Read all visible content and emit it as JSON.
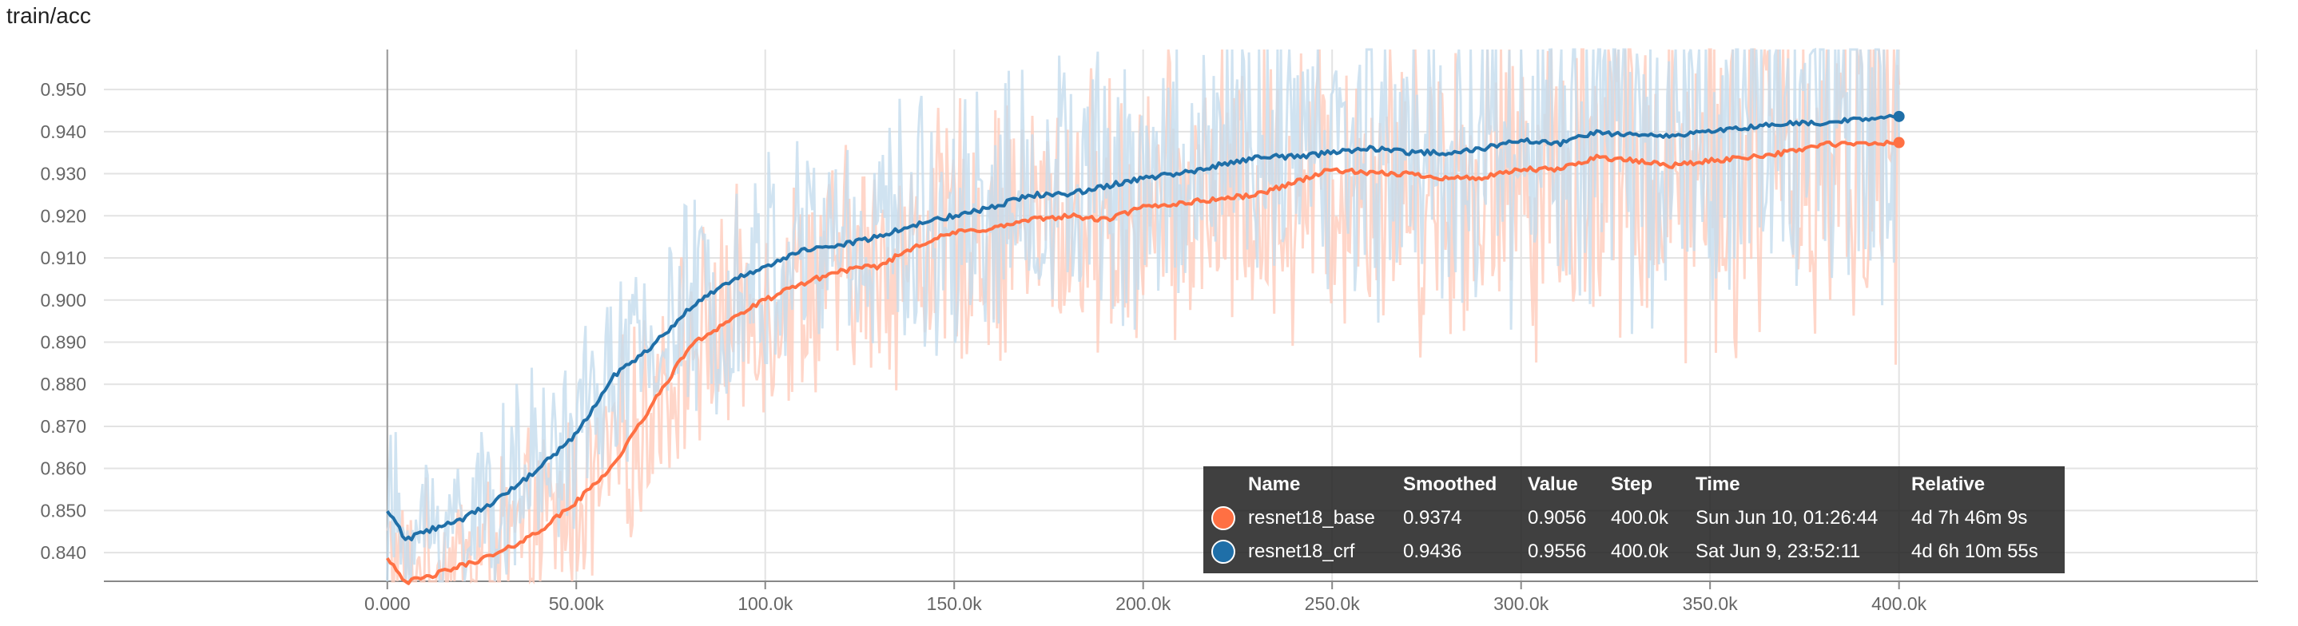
{
  "chart_data": {
    "type": "line",
    "title": "train/acc",
    "xlim": [
      -75000,
      495000
    ],
    "ylim": [
      0.8332,
      0.9595
    ],
    "x_ticks": [
      0,
      50000,
      100000,
      150000,
      200000,
      250000,
      300000,
      350000,
      400000
    ],
    "x_tick_labels": [
      "0.000",
      "50.00k",
      "100.0k",
      "150.0k",
      "200.0k",
      "250.0k",
      "300.0k",
      "350.0k",
      "400.0k"
    ],
    "y_ticks": [
      0.84,
      0.85,
      0.86,
      0.87,
      0.88,
      0.89,
      0.9,
      0.91,
      0.92,
      0.93,
      0.94,
      0.95
    ],
    "y_tick_labels": [
      "0.840",
      "0.850",
      "0.860",
      "0.870",
      "0.880",
      "0.890",
      "0.900",
      "0.910",
      "0.920",
      "0.930",
      "0.940",
      "0.950"
    ],
    "grid": true,
    "legend": "bottom-right",
    "series": [
      {
        "name": "resnet18_base",
        "color": "#ff7043",
        "raw_color": "#ffccbc",
        "smoothed": [
          [
            0,
            0.839
          ],
          [
            5000,
            0.833
          ],
          [
            10000,
            0.834
          ],
          [
            20000,
            0.837
          ],
          [
            30000,
            0.84
          ],
          [
            40000,
            0.845
          ],
          [
            50000,
            0.852
          ],
          [
            60000,
            0.861
          ],
          [
            70000,
            0.875
          ],
          [
            80000,
            0.889
          ],
          [
            90000,
            0.895
          ],
          [
            100000,
            0.9
          ],
          [
            110000,
            0.904
          ],
          [
            120000,
            0.907
          ],
          [
            130000,
            0.908
          ],
          [
            140000,
            0.913
          ],
          [
            150000,
            0.916
          ],
          [
            160000,
            0.917
          ],
          [
            170000,
            0.919
          ],
          [
            180000,
            0.92
          ],
          [
            190000,
            0.919
          ],
          [
            200000,
            0.922
          ],
          [
            210000,
            0.923
          ],
          [
            220000,
            0.924
          ],
          [
            230000,
            0.925
          ],
          [
            240000,
            0.928
          ],
          [
            250000,
            0.931
          ],
          [
            260000,
            0.93
          ],
          [
            270000,
            0.93
          ],
          [
            280000,
            0.929
          ],
          [
            290000,
            0.929
          ],
          [
            300000,
            0.931
          ],
          [
            310000,
            0.931
          ],
          [
            320000,
            0.934
          ],
          [
            330000,
            0.933
          ],
          [
            340000,
            0.932
          ],
          [
            350000,
            0.933
          ],
          [
            360000,
            0.934
          ],
          [
            370000,
            0.935
          ],
          [
            380000,
            0.937
          ],
          [
            390000,
            0.937
          ],
          [
            400000,
            0.9374
          ]
        ]
      },
      {
        "name": "resnet18_crf",
        "color": "#1f6fa8",
        "raw_color": "#c4dced",
        "smoothed": [
          [
            0,
            0.85
          ],
          [
            5000,
            0.843
          ],
          [
            10000,
            0.845
          ],
          [
            20000,
            0.848
          ],
          [
            30000,
            0.853
          ],
          [
            40000,
            0.86
          ],
          [
            50000,
            0.868
          ],
          [
            60000,
            0.882
          ],
          [
            70000,
            0.889
          ],
          [
            80000,
            0.898
          ],
          [
            90000,
            0.904
          ],
          [
            100000,
            0.908
          ],
          [
            110000,
            0.912
          ],
          [
            120000,
            0.913
          ],
          [
            130000,
            0.915
          ],
          [
            140000,
            0.918
          ],
          [
            150000,
            0.92
          ],
          [
            160000,
            0.922
          ],
          [
            170000,
            0.925
          ],
          [
            180000,
            0.925
          ],
          [
            190000,
            0.927
          ],
          [
            200000,
            0.929
          ],
          [
            210000,
            0.93
          ],
          [
            220000,
            0.932
          ],
          [
            230000,
            0.934
          ],
          [
            240000,
            0.934
          ],
          [
            250000,
            0.935
          ],
          [
            260000,
            0.936
          ],
          [
            270000,
            0.935
          ],
          [
            280000,
            0.935
          ],
          [
            290000,
            0.936
          ],
          [
            300000,
            0.938
          ],
          [
            310000,
            0.937
          ],
          [
            320000,
            0.94
          ],
          [
            330000,
            0.939
          ],
          [
            340000,
            0.939
          ],
          [
            350000,
            0.94
          ],
          [
            360000,
            0.941
          ],
          [
            370000,
            0.942
          ],
          [
            380000,
            0.942
          ],
          [
            390000,
            0.943
          ],
          [
            400000,
            0.9436
          ]
        ]
      }
    ]
  },
  "tooltip": {
    "headers": {
      "name": "Name",
      "smoothed": "Smoothed",
      "value": "Value",
      "step": "Step",
      "time": "Time",
      "relative": "Relative"
    },
    "rows": [
      {
        "name": "resnet18_base",
        "color": "#ff7043",
        "smoothed": "0.9374",
        "value": "0.9056",
        "step": "400.0k",
        "time": "Sun Jun 10, 01:26:44",
        "relative": "4d 7h 46m 9s"
      },
      {
        "name": "resnet18_crf",
        "color": "#1f6fa8",
        "smoothed": "0.9436",
        "value": "0.9556",
        "step": "400.0k",
        "time": "Sat Jun 9, 23:52:11",
        "relative": "4d 6h 10m 55s"
      }
    ]
  }
}
